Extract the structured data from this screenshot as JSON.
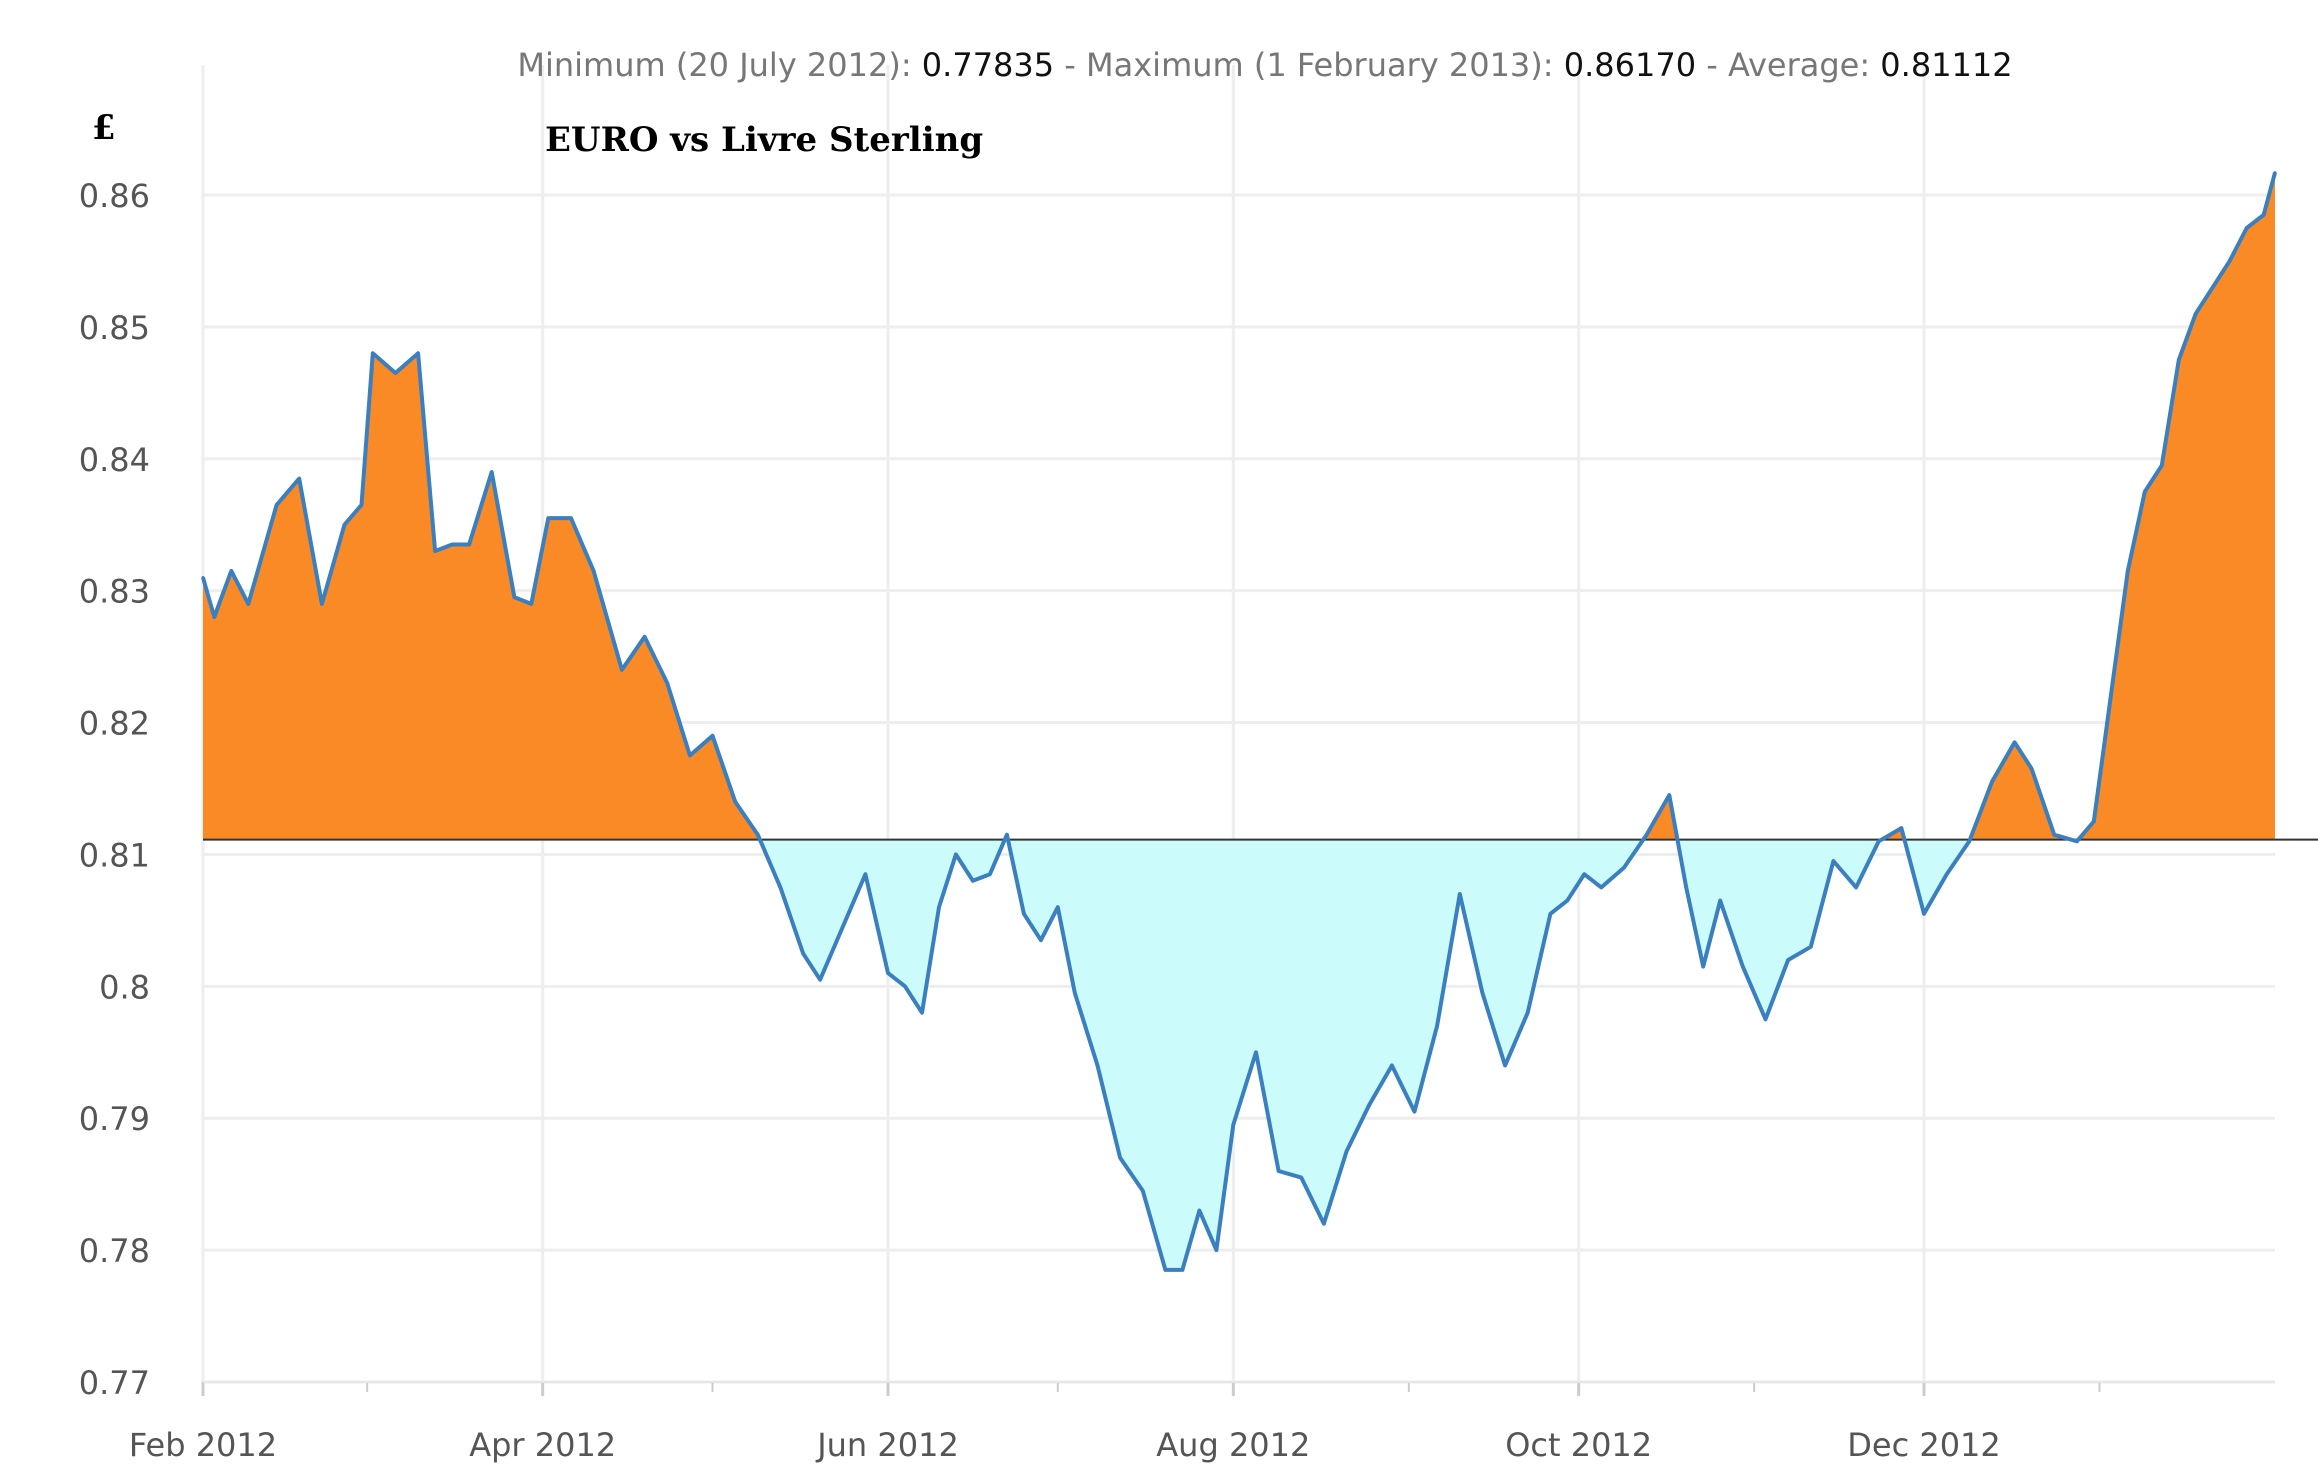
{
  "summary": {
    "min_label": "Minimum (20 July 2012): ",
    "min_value": "0.77835",
    "max_label": " - Maximum (1 February 2013): ",
    "max_value": "0.86170",
    "avg_label": " - Average: ",
    "avg_value": "0.81112"
  },
  "chart_data": {
    "type": "area",
    "title": "EURO vs Livre Sterling",
    "ylabel": "£",
    "xlabel": "",
    "ylim": [
      0.77,
      0.862
    ],
    "xlim": [
      "2012-02-01",
      "2013-02-01"
    ],
    "baseline": 0.81112,
    "grid": true,
    "colors": {
      "line": "#3a7fc0",
      "above": "#f98a25",
      "below": "#ccfbfc",
      "baseline": "#333333",
      "grid": "#eeeeee"
    },
    "y_ticks": [
      {
        "value": 0.77,
        "label": "0.77"
      },
      {
        "value": 0.78,
        "label": "0.78"
      },
      {
        "value": 0.79,
        "label": "0.79"
      },
      {
        "value": 0.8,
        "label": "0.8"
      },
      {
        "value": 0.81,
        "label": "0.81"
      },
      {
        "value": 0.82,
        "label": "0.82"
      },
      {
        "value": 0.83,
        "label": "0.83"
      },
      {
        "value": 0.84,
        "label": "0.84"
      },
      {
        "value": 0.85,
        "label": "0.85"
      },
      {
        "value": 0.86,
        "label": "0.86"
      }
    ],
    "x_ticks": [
      {
        "date": "2012-02-01",
        "label": "Feb 2012"
      },
      {
        "date": "2012-04-01",
        "label": "Apr 2012"
      },
      {
        "date": "2012-06-01",
        "label": "Jun 2012"
      },
      {
        "date": "2012-08-01",
        "label": "Aug 2012"
      },
      {
        "date": "2012-10-01",
        "label": "Oct 2012"
      },
      {
        "date": "2012-12-01",
        "label": "Dec 2012"
      }
    ],
    "minor_x_ticks": [
      "2012-03-01",
      "2012-05-01",
      "2012-07-01",
      "2012-09-01",
      "2012-11-01",
      "2013-01-01"
    ],
    "series": [
      {
        "x": [
          "2012-02-01",
          "2012-02-03",
          "2012-02-06",
          "2012-02-09",
          "2012-02-12",
          "2012-02-14",
          "2012-02-18",
          "2012-02-22",
          "2012-02-26",
          "2012-02-29",
          "2012-03-02",
          "2012-03-06",
          "2012-03-10",
          "2012-03-13",
          "2012-03-16",
          "2012-03-19",
          "2012-03-23",
          "2012-03-27",
          "2012-03-30",
          "2012-04-02",
          "2012-04-06",
          "2012-04-10",
          "2012-04-15",
          "2012-04-19",
          "2012-04-23",
          "2012-04-27",
          "2012-05-01",
          "2012-05-05",
          "2012-05-09",
          "2012-05-13",
          "2012-05-17",
          "2012-05-20",
          "2012-05-24",
          "2012-05-28",
          "2012-06-01",
          "2012-06-04",
          "2012-06-07",
          "2012-06-10",
          "2012-06-13",
          "2012-06-16",
          "2012-06-19",
          "2012-06-22",
          "2012-06-25",
          "2012-06-28",
          "2012-07-01",
          "2012-07-04",
          "2012-07-08",
          "2012-07-12",
          "2012-07-16",
          "2012-07-20",
          "2012-07-23",
          "2012-07-26",
          "2012-07-29",
          "2012-08-01",
          "2012-08-05",
          "2012-08-09",
          "2012-08-13",
          "2012-08-17",
          "2012-08-21",
          "2012-08-25",
          "2012-08-29",
          "2012-09-02",
          "2012-09-06",
          "2012-09-10",
          "2012-09-14",
          "2012-09-18",
          "2012-09-22",
          "2012-09-26",
          "2012-09-29",
          "2012-10-02",
          "2012-10-05",
          "2012-10-09",
          "2012-10-13",
          "2012-10-17",
          "2012-10-20",
          "2012-10-23",
          "2012-10-26",
          "2012-10-30",
          "2012-11-03",
          "2012-11-07",
          "2012-11-11",
          "2012-11-15",
          "2012-11-19",
          "2012-11-23",
          "2012-11-27",
          "2012-12-01",
          "2012-12-05",
          "2012-12-09",
          "2012-12-13",
          "2012-12-17",
          "2012-12-20",
          "2012-12-24",
          "2012-12-28",
          "2012-12-31",
          "2013-01-03",
          "2013-01-06",
          "2013-01-09",
          "2013-01-12",
          "2013-01-15",
          "2013-01-18",
          "2013-01-21",
          "2013-01-24",
          "2013-01-27",
          "2013-01-30",
          "2013-02-01"
        ],
        "values": [
          0.831,
          0.828,
          0.8315,
          0.829,
          0.8335,
          0.8365,
          0.8385,
          0.829,
          0.835,
          0.8365,
          0.848,
          0.8465,
          0.848,
          0.833,
          0.8335,
          0.8335,
          0.839,
          0.8295,
          0.829,
          0.8355,
          0.8355,
          0.8315,
          0.824,
          0.8265,
          0.823,
          0.8175,
          0.819,
          0.814,
          0.8115,
          0.8075,
          0.8025,
          0.8005,
          0.8045,
          0.8085,
          0.801,
          0.8,
          0.798,
          0.806,
          0.81,
          0.808,
          0.8085,
          0.8115,
          0.8055,
          0.8035,
          0.806,
          0.7995,
          0.794,
          0.787,
          0.7845,
          0.7785,
          0.7785,
          0.783,
          0.78,
          0.7895,
          0.795,
          0.786,
          0.7855,
          0.782,
          0.7875,
          0.791,
          0.794,
          0.7905,
          0.797,
          0.807,
          0.7995,
          0.794,
          0.798,
          0.8055,
          0.8065,
          0.8085,
          0.8075,
          0.809,
          0.8115,
          0.8145,
          0.8075,
          0.8015,
          0.8065,
          0.8015,
          0.7975,
          0.802,
          0.803,
          0.8095,
          0.8075,
          0.811,
          0.812,
          0.8055,
          0.8085,
          0.811,
          0.8155,
          0.8185,
          0.8165,
          0.8115,
          0.811,
          0.8125,
          0.822,
          0.8315,
          0.8375,
          0.8395,
          0.8475,
          0.851,
          0.853,
          0.855,
          0.8575,
          0.8585,
          0.8617
        ]
      }
    ]
  }
}
